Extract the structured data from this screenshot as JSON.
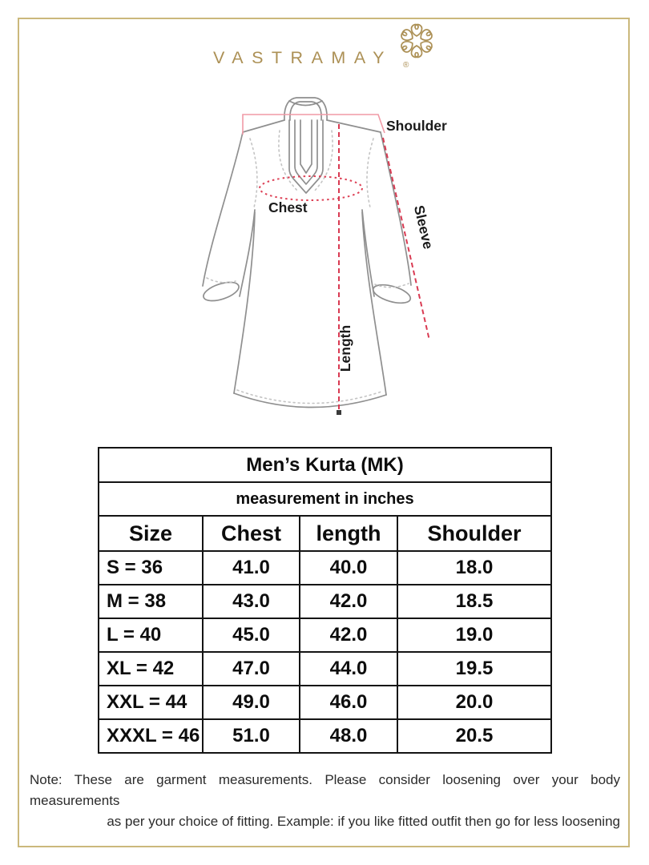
{
  "brand": {
    "name": "VASTRAMAY",
    "registered_mark": "®"
  },
  "diagram": {
    "labels": {
      "shoulder": "Shoulder",
      "chest": "Chest",
      "sleeve": "Sleeve",
      "length": "Length"
    }
  },
  "size_chart": {
    "title": "Men’s Kurta (MK)",
    "subtitle": "measurement in inches",
    "columns": [
      "Size",
      "Chest",
      "length",
      "Shoulder"
    ],
    "rows": [
      [
        "S = 36",
        "41.0",
        "40.0",
        "18.0"
      ],
      [
        "M = 38",
        "43.0",
        "42.0",
        "18.5"
      ],
      [
        "L = 40",
        "45.0",
        "42.0",
        "19.0"
      ],
      [
        "XL = 42",
        "47.0",
        "44.0",
        "19.5"
      ],
      [
        "XXL = 44",
        "49.0",
        "46.0",
        "20.0"
      ],
      [
        "XXXL = 46",
        "51.0",
        "48.0",
        "20.5"
      ]
    ]
  },
  "note": {
    "line1": "Note: These are garment measurements. Please consider loosening over your body measurements",
    "line2": "as per your choice of fitting. Example: if you like fitted outfit then go for less loosening"
  },
  "colors": {
    "gold": "#ac9055",
    "frame": "#cbb87c",
    "accent_red": "#d93a52",
    "accent_pink": "#f09aa6",
    "garment_gray": "#8f8f8f"
  }
}
